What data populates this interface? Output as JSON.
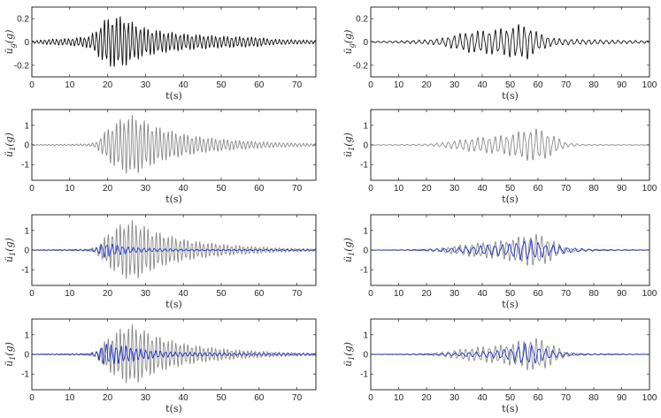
{
  "chart_data": [
    {
      "type": "line",
      "panel": "left-1",
      "xlabel": "t(s)",
      "ylabel": "ü_g(g)",
      "xlim": [
        0,
        75
      ],
      "ylim": [
        -0.3,
        0.3
      ],
      "xticks": [
        0,
        10,
        20,
        30,
        40,
        50,
        60,
        70
      ],
      "yticks": [
        -0.2,
        0,
        0.2
      ],
      "series": [
        {
          "style": "black",
          "envelope": [
            [
              0,
              0.01
            ],
            [
              5,
              0.025
            ],
            [
              10,
              0.03
            ],
            [
              15,
              0.05
            ],
            [
              17,
              0.1
            ],
            [
              19,
              0.19
            ],
            [
              21,
              0.22
            ],
            [
              24,
              0.22
            ],
            [
              27,
              0.16
            ],
            [
              30,
              0.12
            ],
            [
              35,
              0.09
            ],
            [
              40,
              0.07
            ],
            [
              45,
              0.06
            ],
            [
              50,
              0.05
            ],
            [
              55,
              0.045
            ],
            [
              60,
              0.04
            ],
            [
              63,
              0.025
            ],
            [
              68,
              0.02
            ],
            [
              75,
              0.015
            ]
          ],
          "period": 1.05
        }
      ]
    },
    {
      "type": "line",
      "panel": "right-1",
      "xlabel": "t(s)",
      "ylabel": "ü_g(g)",
      "xlim": [
        0,
        100
      ],
      "ylim": [
        -0.3,
        0.3
      ],
      "xticks": [
        0,
        10,
        20,
        30,
        40,
        50,
        60,
        70,
        80,
        90,
        100
      ],
      "yticks": [
        -0.2,
        0,
        0.2
      ],
      "series": [
        {
          "style": "black",
          "envelope": [
            [
              0,
              0.005
            ],
            [
              10,
              0.01
            ],
            [
              20,
              0.02
            ],
            [
              25,
              0.03
            ],
            [
              30,
              0.06
            ],
            [
              35,
              0.09
            ],
            [
              40,
              0.1
            ],
            [
              45,
              0.11
            ],
            [
              50,
              0.13
            ],
            [
              53,
              0.15
            ],
            [
              56,
              0.15
            ],
            [
              60,
              0.08
            ],
            [
              65,
              0.035
            ],
            [
              70,
              0.025
            ],
            [
              80,
              0.02
            ],
            [
              90,
              0.015
            ],
            [
              100,
              0.01
            ]
          ],
          "period": 2.1
        }
      ]
    },
    {
      "type": "line",
      "panel": "left-2",
      "xlabel": "t(s)",
      "ylabel": "ü_1(g)",
      "xlim": [
        0,
        75
      ],
      "ylim": [
        -1.8,
        1.8
      ],
      "xticks": [
        0,
        10,
        20,
        30,
        40,
        50,
        60,
        70
      ],
      "yticks": [
        -1,
        0,
        1
      ],
      "series": [
        {
          "style": "gray",
          "envelope": [
            [
              0,
              0.02
            ],
            [
              10,
              0.04
            ],
            [
              15,
              0.06
            ],
            [
              17,
              0.15
            ],
            [
              19,
              0.6
            ],
            [
              21,
              1.0
            ],
            [
              24,
              1.4
            ],
            [
              26,
              1.55
            ],
            [
              28,
              1.45
            ],
            [
              31,
              1.1
            ],
            [
              35,
              0.8
            ],
            [
              40,
              0.55
            ],
            [
              45,
              0.4
            ],
            [
              50,
              0.3
            ],
            [
              55,
              0.22
            ],
            [
              60,
              0.17
            ],
            [
              65,
              0.12
            ],
            [
              70,
              0.09
            ],
            [
              75,
              0.07
            ]
          ],
          "period": 1.05
        }
      ]
    },
    {
      "type": "line",
      "panel": "right-2",
      "xlabel": "t(s)",
      "ylabel": "ü_1(g)",
      "xlim": [
        0,
        100
      ],
      "ylim": [
        -1.8,
        1.8
      ],
      "xticks": [
        0,
        10,
        20,
        30,
        40,
        50,
        60,
        70,
        80,
        90,
        100
      ],
      "yticks": [
        -1,
        0,
        1
      ],
      "series": [
        {
          "style": "gray",
          "envelope": [
            [
              0,
              0.01
            ],
            [
              10,
              0.02
            ],
            [
              20,
              0.05
            ],
            [
              25,
              0.1
            ],
            [
              30,
              0.22
            ],
            [
              35,
              0.32
            ],
            [
              40,
              0.4
            ],
            [
              45,
              0.45
            ],
            [
              50,
              0.55
            ],
            [
              55,
              0.75
            ],
            [
              58,
              0.85
            ],
            [
              62,
              0.75
            ],
            [
              66,
              0.45
            ],
            [
              70,
              0.12
            ],
            [
              75,
              0.04
            ],
            [
              85,
              0.02
            ],
            [
              100,
              0.01
            ]
          ],
          "period": 2.1
        }
      ]
    },
    {
      "type": "line",
      "panel": "left-3",
      "xlabel": "t(s)",
      "ylabel": "ü_1(g)",
      "xlim": [
        0,
        75
      ],
      "ylim": [
        -1.8,
        1.8
      ],
      "xticks": [
        0,
        10,
        20,
        30,
        40,
        50,
        60,
        70
      ],
      "yticks": [
        -1,
        0,
        1
      ],
      "series": [
        {
          "style": "gray",
          "envelope": [
            [
              0,
              0.02
            ],
            [
              10,
              0.04
            ],
            [
              15,
              0.06
            ],
            [
              17,
              0.15
            ],
            [
              19,
              0.6
            ],
            [
              21,
              1.0
            ],
            [
              24,
              1.4
            ],
            [
              26,
              1.55
            ],
            [
              28,
              1.45
            ],
            [
              31,
              1.1
            ],
            [
              35,
              0.8
            ],
            [
              40,
              0.55
            ],
            [
              45,
              0.4
            ],
            [
              50,
              0.3
            ],
            [
              55,
              0.22
            ],
            [
              60,
              0.17
            ],
            [
              65,
              0.12
            ],
            [
              70,
              0.09
            ],
            [
              75,
              0.07
            ]
          ],
          "period": 1.05
        },
        {
          "style": "blue",
          "envelope": [
            [
              0,
              0.01
            ],
            [
              10,
              0.02
            ],
            [
              15,
              0.04
            ],
            [
              17,
              0.12
            ],
            [
              19,
              0.38
            ],
            [
              21,
              0.32
            ],
            [
              23,
              0.25
            ],
            [
              26,
              0.15
            ],
            [
              30,
              0.1
            ],
            [
              35,
              0.07
            ],
            [
              40,
              0.05
            ],
            [
              50,
              0.04
            ],
            [
              60,
              0.03
            ],
            [
              75,
              0.02
            ]
          ],
          "period": 1.4
        }
      ]
    },
    {
      "type": "line",
      "panel": "right-3",
      "xlabel": "t(s)",
      "ylabel": "ü_1(g)",
      "xlim": [
        0,
        100
      ],
      "ylim": [
        -1.8,
        1.8
      ],
      "xticks": [
        0,
        10,
        20,
        30,
        40,
        50,
        60,
        70,
        80,
        90,
        100
      ],
      "yticks": [
        -1,
        0,
        1
      ],
      "series": [
        {
          "style": "gray",
          "envelope": [
            [
              0,
              0.01
            ],
            [
              10,
              0.02
            ],
            [
              20,
              0.05
            ],
            [
              25,
              0.1
            ],
            [
              30,
              0.22
            ],
            [
              35,
              0.32
            ],
            [
              40,
              0.4
            ],
            [
              45,
              0.45
            ],
            [
              50,
              0.55
            ],
            [
              55,
              0.75
            ],
            [
              58,
              0.85
            ],
            [
              62,
              0.75
            ],
            [
              66,
              0.45
            ],
            [
              70,
              0.12
            ],
            [
              75,
              0.04
            ],
            [
              85,
              0.02
            ],
            [
              100,
              0.01
            ]
          ],
          "period": 2.1
        },
        {
          "style": "blue",
          "envelope": [
            [
              0,
              0.005
            ],
            [
              10,
              0.01
            ],
            [
              20,
              0.04
            ],
            [
              30,
              0.12
            ],
            [
              35,
              0.18
            ],
            [
              40,
              0.25
            ],
            [
              45,
              0.28
            ],
            [
              50,
              0.32
            ],
            [
              55,
              0.55
            ],
            [
              58,
              0.5
            ],
            [
              62,
              0.35
            ],
            [
              67,
              0.22
            ],
            [
              72,
              0.12
            ],
            [
              78,
              0.06
            ],
            [
              85,
              0.03
            ],
            [
              100,
              0.01
            ]
          ],
          "period": 2.6
        }
      ]
    },
    {
      "type": "line",
      "panel": "left-4",
      "xlabel": "t(s)",
      "ylabel": "ü_1(g)",
      "xlim": [
        0,
        75
      ],
      "ylim": [
        -1.8,
        1.8
      ],
      "xticks": [
        0,
        10,
        20,
        30,
        40,
        50,
        60,
        70
      ],
      "yticks": [
        -1,
        0,
        1
      ],
      "series": [
        {
          "style": "gray",
          "envelope": [
            [
              0,
              0.02
            ],
            [
              10,
              0.04
            ],
            [
              15,
              0.06
            ],
            [
              17,
              0.15
            ],
            [
              19,
              0.6
            ],
            [
              21,
              1.0
            ],
            [
              24,
              1.4
            ],
            [
              26,
              1.55
            ],
            [
              28,
              1.45
            ],
            [
              31,
              1.1
            ],
            [
              35,
              0.8
            ],
            [
              40,
              0.55
            ],
            [
              45,
              0.4
            ],
            [
              50,
              0.3
            ],
            [
              55,
              0.22
            ],
            [
              60,
              0.17
            ],
            [
              65,
              0.12
            ],
            [
              70,
              0.09
            ],
            [
              75,
              0.07
            ]
          ],
          "period": 1.05
        },
        {
          "style": "blue",
          "envelope": [
            [
              0,
              0.01
            ],
            [
              10,
              0.02
            ],
            [
              15,
              0.04
            ],
            [
              17,
              0.15
            ],
            [
              19,
              0.55
            ],
            [
              21,
              0.5
            ],
            [
              24,
              0.45
            ],
            [
              27,
              0.35
            ],
            [
              30,
              0.25
            ],
            [
              35,
              0.15
            ],
            [
              40,
              0.11
            ],
            [
              50,
              0.08
            ],
            [
              60,
              0.06
            ],
            [
              75,
              0.04
            ]
          ],
          "period": 1.3
        }
      ]
    },
    {
      "type": "line",
      "panel": "right-4",
      "xlabel": "t(s)",
      "ylabel": "ü_1(g)",
      "xlim": [
        0,
        100
      ],
      "ylim": [
        -1.8,
        1.8
      ],
      "xticks": [
        0,
        10,
        20,
        30,
        40,
        50,
        60,
        70,
        80,
        90,
        100
      ],
      "yticks": [
        -1,
        0,
        1
      ],
      "series": [
        {
          "style": "gray",
          "envelope": [
            [
              0,
              0.01
            ],
            [
              10,
              0.02
            ],
            [
              20,
              0.05
            ],
            [
              25,
              0.1
            ],
            [
              30,
              0.22
            ],
            [
              35,
              0.32
            ],
            [
              40,
              0.4
            ],
            [
              45,
              0.45
            ],
            [
              50,
              0.55
            ],
            [
              55,
              0.75
            ],
            [
              58,
              0.85
            ],
            [
              62,
              0.75
            ],
            [
              66,
              0.45
            ],
            [
              70,
              0.12
            ],
            [
              75,
              0.04
            ],
            [
              85,
              0.02
            ],
            [
              100,
              0.01
            ]
          ],
          "period": 2.1
        },
        {
          "style": "blue",
          "envelope": [
            [
              0,
              0.005
            ],
            [
              10,
              0.01
            ],
            [
              20,
              0.03
            ],
            [
              30,
              0.08
            ],
            [
              35,
              0.12
            ],
            [
              40,
              0.15
            ],
            [
              45,
              0.2
            ],
            [
              50,
              0.3
            ],
            [
              55,
              0.55
            ],
            [
              58,
              0.5
            ],
            [
              62,
              0.32
            ],
            [
              67,
              0.15
            ],
            [
              72,
              0.07
            ],
            [
              80,
              0.03
            ],
            [
              100,
              0.01
            ]
          ],
          "period": 2.5
        }
      ]
    }
  ],
  "colors": {
    "black": "#111111",
    "gray": "#8a8a8a",
    "blue": "#1f2fbf",
    "axis": "#262626"
  }
}
